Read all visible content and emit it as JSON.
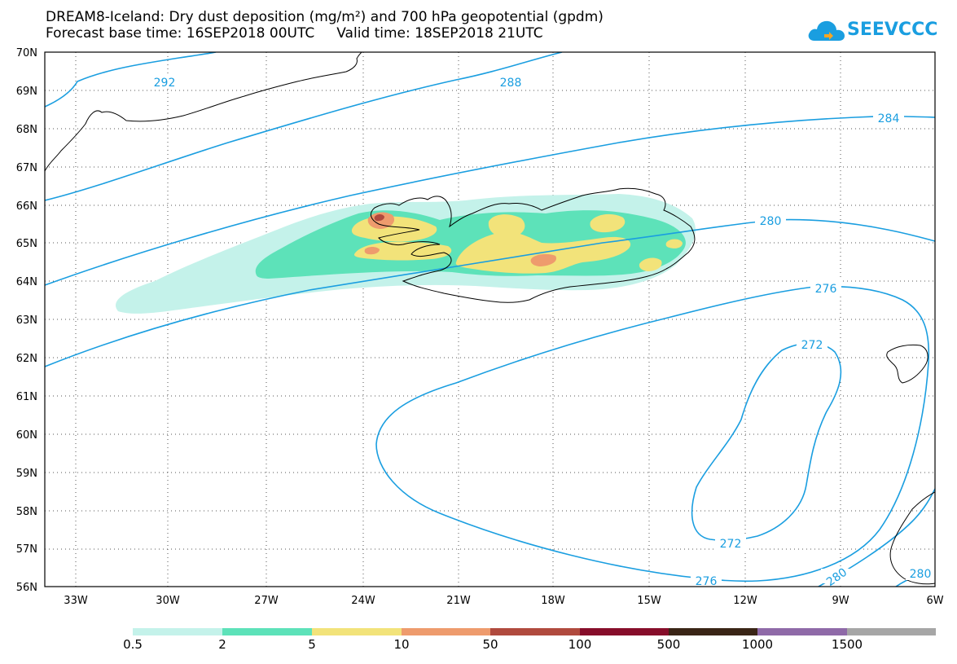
{
  "title_line1": "DREAM8-Iceland: Dry dust deposition (mg/m²) and 700 hPa geopotential (gpdm)",
  "title_line2": "Forecast base time: 16SEP2018 00UTC     Valid time: 18SEP2018 21UTC",
  "logo_text": "SEEVCCC",
  "colors": {
    "contour": "#1a9ee0",
    "bins": [
      "#c4f2ea",
      "#5de2b9",
      "#f2e37a",
      "#ee9b6d",
      "#b04a3e",
      "#860d2a",
      "#3a2516",
      "#8f6aa8",
      "#a6a6a6"
    ]
  },
  "map": {
    "lat_labels": [
      "56N",
      "57N",
      "58N",
      "59N",
      "60N",
      "61N",
      "62N",
      "63N",
      "64N",
      "65N",
      "66N",
      "67N",
      "68N",
      "69N",
      "70N"
    ],
    "lon_labels": [
      "33W",
      "30W",
      "27W",
      "24W",
      "21W",
      "18W",
      "15W",
      "12W",
      "9W",
      "6W"
    ],
    "contour_labels": [
      "292",
      "288",
      "284",
      "280",
      "276",
      "272",
      "272",
      "276",
      "280",
      "280"
    ]
  },
  "legend": {
    "labels": [
      "0.5",
      "2",
      "5",
      "10",
      "50",
      "100",
      "500",
      "1000",
      "1500"
    ]
  }
}
